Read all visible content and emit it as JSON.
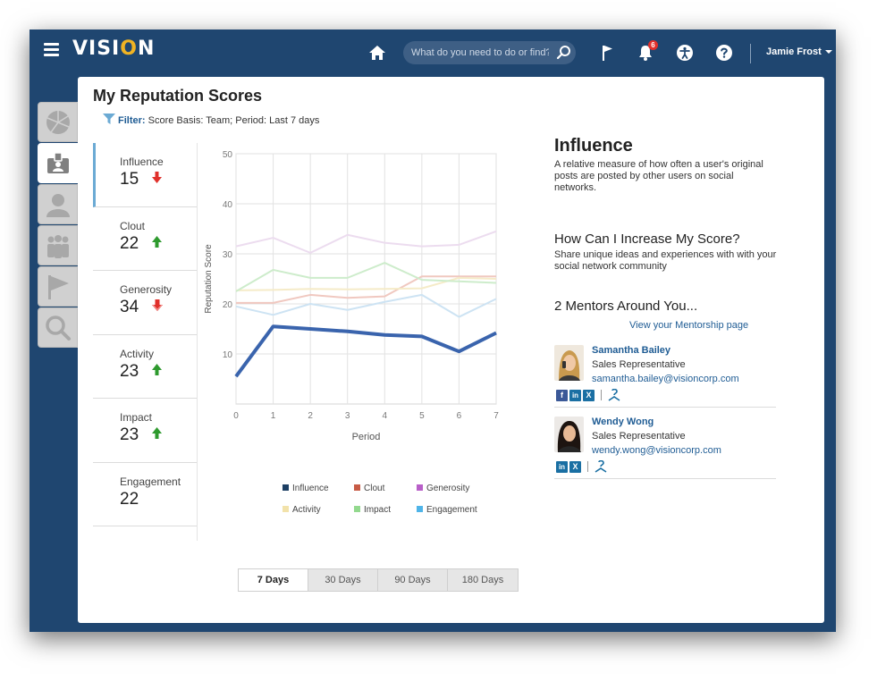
{
  "app": {
    "logo_prefix": "VISI",
    "logo_o": "O",
    "logo_suffix": "N"
  },
  "topbar": {
    "search_placeholder": "What do you need to do or find?",
    "notification_count": "6",
    "user_name": "Jamie Frost"
  },
  "page": {
    "title": "My Reputation Scores",
    "filter_label": "Filter:",
    "filter_value": "Score Basis: Team; Period: Last 7 days"
  },
  "scores": [
    {
      "name": "Influence",
      "value": "15",
      "trend": "down"
    },
    {
      "name": "Clout",
      "value": "22",
      "trend": "up"
    },
    {
      "name": "Generosity",
      "value": "34",
      "trend": "down"
    },
    {
      "name": "Activity",
      "value": "23",
      "trend": "up"
    },
    {
      "name": "Impact",
      "value": "23",
      "trend": "up"
    },
    {
      "name": "Engagement",
      "value": "22",
      "trend": "none"
    }
  ],
  "colors": {
    "trend_up": "#2e9a2e",
    "trend_down": "#e0302b",
    "accent": "#1f5c94",
    "frame": "#1f4670"
  },
  "chart_data": {
    "type": "line",
    "ylabel": "Reputation Score",
    "xlabel": "Period",
    "x": [
      0,
      1,
      2,
      3,
      4,
      5,
      6,
      7
    ],
    "xlim": [
      0,
      7
    ],
    "ylim": [
      0,
      50
    ],
    "yticks": [
      10,
      20,
      30,
      40,
      50
    ],
    "grid": true,
    "legend_position": "bottom",
    "series": [
      {
        "name": "Influence",
        "color": "#3a64ad",
        "width": 4,
        "values": [
          5.5,
          15.5,
          15,
          14.5,
          13.8,
          13.5,
          10.5,
          14.2
        ]
      },
      {
        "name": "Clout",
        "color": "#f0c8c0",
        "width": 2,
        "values": [
          20.2,
          20.2,
          21.8,
          21.2,
          21.5,
          25.5,
          25.5,
          25.5
        ]
      },
      {
        "name": "Generosity",
        "color": "#ecdcef",
        "width": 2,
        "values": [
          31.5,
          33.2,
          30.2,
          33.8,
          32.2,
          31.5,
          31.8,
          34.5
        ]
      },
      {
        "name": "Activity",
        "color": "#f5ebc8",
        "width": 2,
        "values": [
          22.7,
          22.8,
          23.0,
          22.9,
          23.0,
          23.1,
          25.2,
          25.0
        ]
      },
      {
        "name": "Impact",
        "color": "#cdeccb",
        "width": 2,
        "values": [
          22.5,
          26.8,
          25.2,
          25.2,
          28.2,
          24.8,
          24.5,
          24.2
        ]
      },
      {
        "name": "Engagement",
        "color": "#cde3f3",
        "width": 2,
        "values": [
          19.5,
          17.8,
          20.0,
          18.8,
          20.4,
          21.8,
          17.4,
          21.0
        ]
      }
    ],
    "legend": [
      {
        "name": "Influence",
        "color": "#1d3f64"
      },
      {
        "name": "Clout",
        "color": "#c75b45"
      },
      {
        "name": "Generosity",
        "color": "#b85fc8"
      },
      {
        "name": "Activity",
        "color": "#f2e2aa"
      },
      {
        "name": "Impact",
        "color": "#93d98e"
      },
      {
        "name": "Engagement",
        "color": "#4fb4e8"
      }
    ]
  },
  "ranges": [
    {
      "label": "7 Days",
      "active": true
    },
    {
      "label": "30 Days",
      "active": false
    },
    {
      "label": "90 Days",
      "active": false
    },
    {
      "label": "180 Days",
      "active": false
    }
  ],
  "info": {
    "title": "Influence",
    "description": "A relative measure of how often a user's original posts are posted by other users on social networks.",
    "increase_title": "How Can I Increase My Score?",
    "increase_desc": "Share unique ideas and experiences with with your social network community",
    "mentors_title": "2 Mentors Around You...",
    "mentorship_link": "View your Mentorship page"
  },
  "mentors": [
    {
      "name": "Samantha Bailey",
      "role": "Sales Representative",
      "email": "samantha.bailey@visioncorp.com"
    },
    {
      "name": "Wendy Wong",
      "role": "Sales Representative",
      "email": "wendy.wong@visioncorp.com"
    }
  ],
  "social": {
    "facebook": "f",
    "linkedin": "in",
    "xing": "X"
  }
}
